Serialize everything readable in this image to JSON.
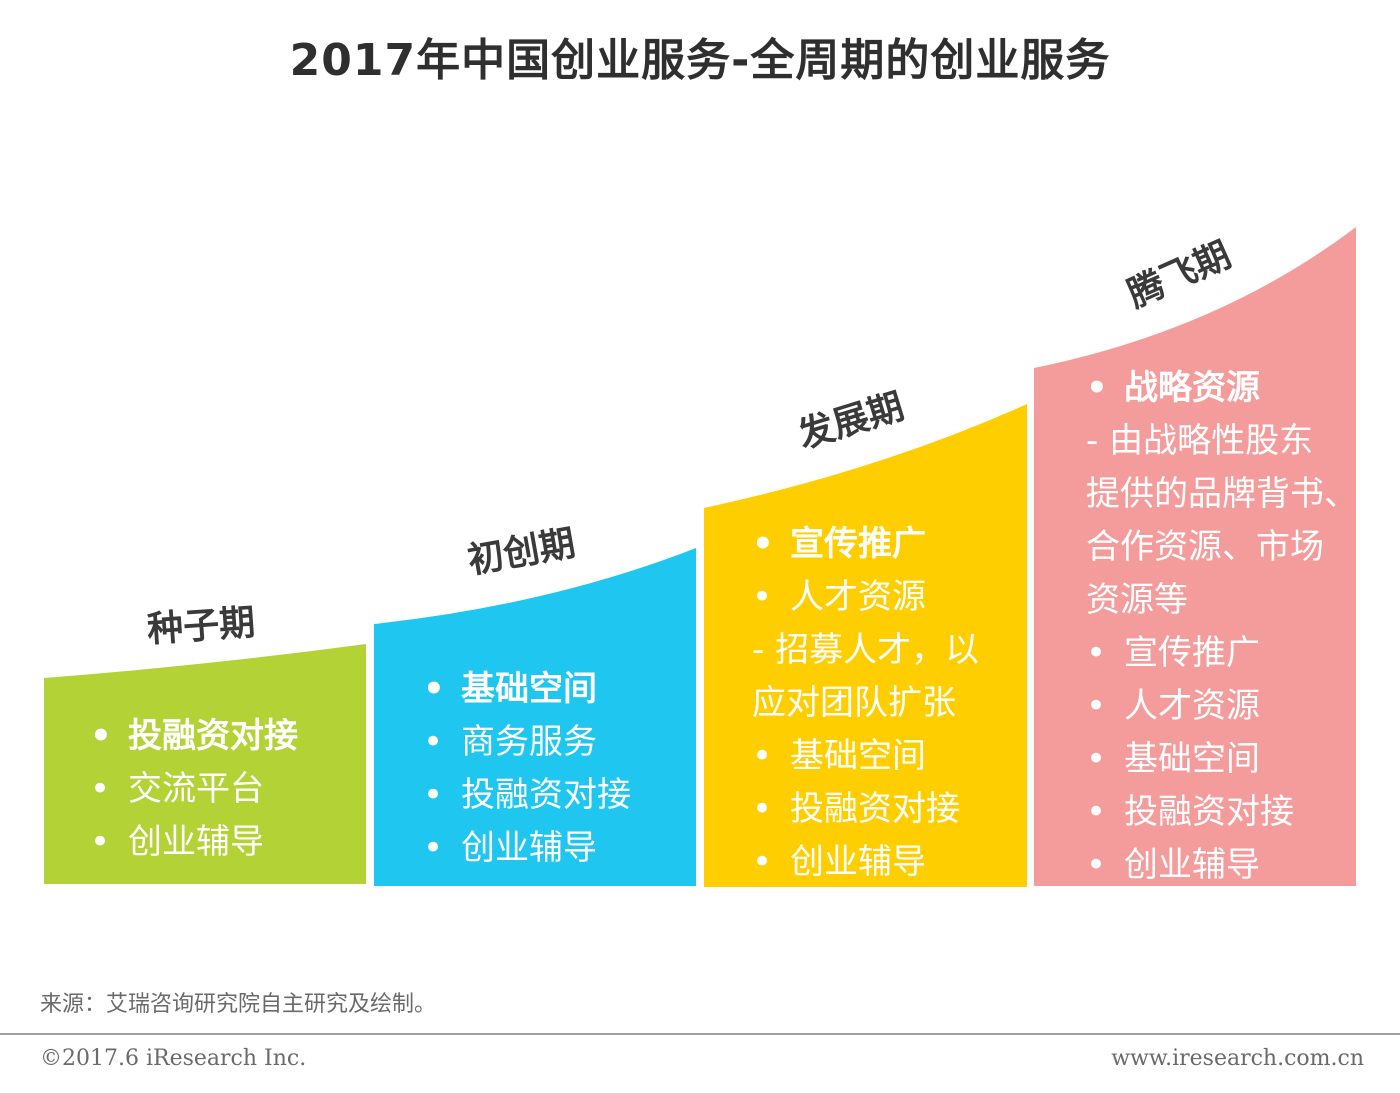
{
  "title": "2017年中国创业服务-全周期的创业服务",
  "colors": {
    "seed": "#b3d235",
    "startup": "#1fc6ef",
    "growth": "#ffce00",
    "takeoff": "#f39c9b"
  },
  "stages": [
    {
      "label": "种子期",
      "items": [
        {
          "text": "投融资对接",
          "bold": true
        },
        {
          "text": "交流平台",
          "bold": false
        },
        {
          "text": "创业辅导",
          "bold": false
        }
      ]
    },
    {
      "label": "初创期",
      "items": [
        {
          "text": "基础空间",
          "bold": true
        },
        {
          "text": "商务服务",
          "bold": false
        },
        {
          "text": "投融资对接",
          "bold": false
        },
        {
          "text": "创业辅导",
          "bold": false
        }
      ]
    },
    {
      "label": "发展期",
      "items": [
        {
          "text": "宣传推广",
          "bold": true
        },
        {
          "text": "人才资源",
          "bold": false
        },
        {
          "desc": [
            "- 招募人才，以",
            "应对团队扩张"
          ]
        },
        {
          "text": "基础空间",
          "bold": false
        },
        {
          "text": "投融资对接",
          "bold": false
        },
        {
          "text": "创业辅导",
          "bold": false
        }
      ]
    },
    {
      "label": "腾飞期",
      "items": [
        {
          "text": "战略资源",
          "bold": true
        },
        {
          "desc": [
            "- 由战略性股东",
            "提供的品牌背书、",
            "合作资源、市场",
            "资源等"
          ]
        },
        {
          "text": "宣传推广",
          "bold": false
        },
        {
          "text": "人才资源",
          "bold": false
        },
        {
          "text": "基础空间",
          "bold": false
        },
        {
          "text": "投融资对接",
          "bold": false
        },
        {
          "text": "创业辅导",
          "bold": false
        }
      ]
    }
  ],
  "source": "来源：艾瑞咨询研究院自主研究及绘制。",
  "copyright": "©2017.6 iResearch Inc.",
  "website": "www.iresearch.com.cn"
}
